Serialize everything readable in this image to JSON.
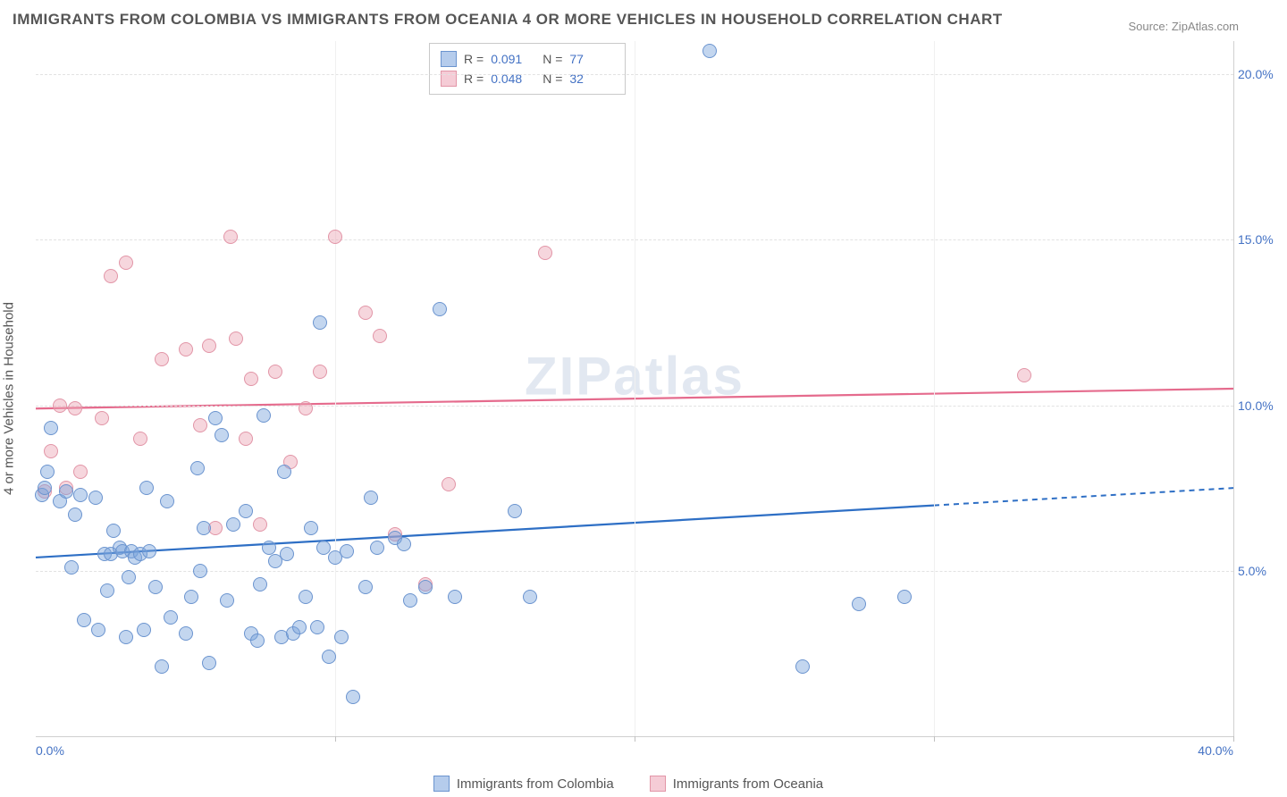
{
  "title": "IMMIGRANTS FROM COLOMBIA VS IMMIGRANTS FROM OCEANIA 4 OR MORE VEHICLES IN HOUSEHOLD CORRELATION CHART",
  "source": "Source: ZipAtlas.com",
  "ylabel": "4 or more Vehicles in Household",
  "watermark": "ZIPatlas",
  "chart": {
    "xlim": [
      0,
      40
    ],
    "ylim": [
      0,
      21
    ],
    "xticks": [
      0,
      10,
      20,
      30,
      40
    ],
    "xtick_labels": [
      "0.0%",
      "",
      "",
      "",
      "40.0%"
    ],
    "yticks": [
      5,
      10,
      15,
      20
    ],
    "ytick_labels": [
      "5.0%",
      "10.0%",
      "15.0%",
      "20.0%"
    ],
    "x_grid_positions": [
      0.5,
      10,
      20,
      30,
      40
    ],
    "plot_color_blue": "#6b94cf",
    "plot_color_pink": "#e295a7",
    "trend_blue_color": "#2e6fc5",
    "trend_pink_color": "#e56b8d",
    "grid_color": "#e2e2e2"
  },
  "series": {
    "colombia": {
      "label": "Immigrants from Colombia",
      "r": "0.091",
      "n": "77",
      "trend": {
        "y_start": 5.4,
        "y_end": 7.5,
        "solid_until_x": 30
      },
      "points": [
        [
          0.2,
          7.3
        ],
        [
          0.3,
          7.5
        ],
        [
          0.4,
          8.0
        ],
        [
          0.5,
          9.3
        ],
        [
          0.8,
          7.1
        ],
        [
          1.0,
          7.4
        ],
        [
          1.2,
          5.1
        ],
        [
          1.3,
          6.7
        ],
        [
          1.5,
          7.3
        ],
        [
          1.6,
          3.5
        ],
        [
          2.0,
          7.2
        ],
        [
          2.1,
          3.2
        ],
        [
          2.3,
          5.5
        ],
        [
          2.4,
          4.4
        ],
        [
          2.5,
          5.5
        ],
        [
          2.6,
          6.2
        ],
        [
          2.8,
          5.7
        ],
        [
          2.9,
          5.6
        ],
        [
          3.0,
          3.0
        ],
        [
          3.1,
          4.8
        ],
        [
          3.2,
          5.6
        ],
        [
          3.3,
          5.4
        ],
        [
          3.5,
          5.5
        ],
        [
          3.6,
          3.2
        ],
        [
          3.7,
          7.5
        ],
        [
          3.8,
          5.6
        ],
        [
          4.0,
          4.5
        ],
        [
          4.2,
          2.1
        ],
        [
          4.4,
          7.1
        ],
        [
          4.5,
          3.6
        ],
        [
          5.0,
          3.1
        ],
        [
          5.2,
          4.2
        ],
        [
          5.4,
          8.1
        ],
        [
          5.5,
          5.0
        ],
        [
          5.6,
          6.3
        ],
        [
          5.8,
          2.2
        ],
        [
          6.0,
          9.6
        ],
        [
          6.2,
          9.1
        ],
        [
          6.4,
          4.1
        ],
        [
          6.6,
          6.4
        ],
        [
          7.0,
          6.8
        ],
        [
          7.2,
          3.1
        ],
        [
          7.4,
          2.9
        ],
        [
          7.5,
          4.6
        ],
        [
          7.6,
          9.7
        ],
        [
          7.8,
          5.7
        ],
        [
          8.0,
          5.3
        ],
        [
          8.2,
          3.0
        ],
        [
          8.3,
          8.0
        ],
        [
          8.4,
          5.5
        ],
        [
          8.6,
          3.1
        ],
        [
          8.8,
          3.3
        ],
        [
          9.0,
          4.2
        ],
        [
          9.2,
          6.3
        ],
        [
          9.4,
          3.3
        ],
        [
          9.5,
          12.5
        ],
        [
          9.6,
          5.7
        ],
        [
          9.8,
          2.4
        ],
        [
          10.0,
          5.4
        ],
        [
          10.2,
          3.0
        ],
        [
          10.4,
          5.6
        ],
        [
          10.6,
          1.2
        ],
        [
          11.0,
          4.5
        ],
        [
          11.2,
          7.2
        ],
        [
          11.4,
          5.7
        ],
        [
          12.0,
          6.0
        ],
        [
          12.3,
          5.8
        ],
        [
          12.5,
          4.1
        ],
        [
          13.0,
          4.5
        ],
        [
          13.5,
          12.9
        ],
        [
          14.0,
          4.2
        ],
        [
          16.0,
          6.8
        ],
        [
          16.5,
          4.2
        ],
        [
          22.5,
          20.7
        ],
        [
          25.6,
          2.1
        ],
        [
          27.5,
          4.0
        ],
        [
          29.0,
          4.2
        ]
      ]
    },
    "oceania": {
      "label": "Immigrants from Oceania",
      "r": "0.048",
      "n": "32",
      "trend": {
        "y_start": 9.9,
        "y_end": 10.5,
        "solid_until_x": 40
      },
      "points": [
        [
          0.3,
          7.4
        ],
        [
          0.5,
          8.6
        ],
        [
          0.8,
          10.0
        ],
        [
          1.0,
          7.5
        ],
        [
          1.3,
          9.9
        ],
        [
          1.5,
          8.0
        ],
        [
          2.2,
          9.6
        ],
        [
          2.5,
          13.9
        ],
        [
          3.0,
          14.3
        ],
        [
          3.5,
          9.0
        ],
        [
          4.2,
          11.4
        ],
        [
          5.0,
          11.7
        ],
        [
          5.5,
          9.4
        ],
        [
          5.8,
          11.8
        ],
        [
          6.0,
          6.3
        ],
        [
          6.5,
          15.1
        ],
        [
          6.7,
          12.0
        ],
        [
          7.0,
          9.0
        ],
        [
          7.2,
          10.8
        ],
        [
          7.5,
          6.4
        ],
        [
          8.0,
          11.0
        ],
        [
          8.5,
          8.3
        ],
        [
          9.0,
          9.9
        ],
        [
          9.5,
          11.0
        ],
        [
          10.0,
          15.1
        ],
        [
          11.0,
          12.8
        ],
        [
          11.5,
          12.1
        ],
        [
          12.0,
          6.1
        ],
        [
          13.0,
          4.6
        ],
        [
          13.8,
          7.6
        ],
        [
          17.0,
          14.6
        ],
        [
          33.0,
          10.9
        ]
      ]
    }
  },
  "stats_labels": {
    "r": "R =",
    "n": "N ="
  }
}
